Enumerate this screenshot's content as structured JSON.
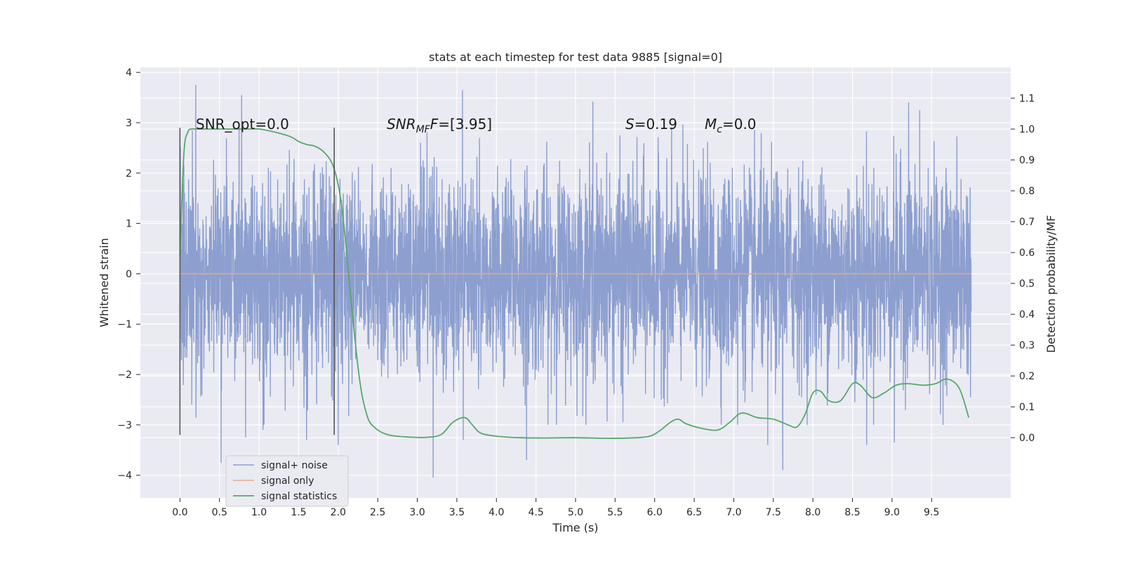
{
  "chart_data": {
    "type": "line",
    "title": "stats at each timestep for test data 9885 [signal=0]",
    "xlabel": "Time (s)",
    "ylabel_left": "Whitened strain",
    "ylabel_right": "Detection probability/MF",
    "xlim": [
      -0.5,
      10.5
    ],
    "ylim_left": [
      -4.45,
      4.1
    ],
    "ylim_right": [
      -0.195,
      1.2
    ],
    "x_ticks": [
      0.0,
      0.5,
      1.0,
      1.5,
      2.0,
      2.5,
      3.0,
      3.5,
      4.0,
      4.5,
      5.0,
      5.5,
      6.0,
      6.5,
      7.0,
      7.5,
      8.0,
      8.5,
      9.0,
      9.5
    ],
    "x_tick_labels": [
      "0.0",
      "0.5",
      "1.0",
      "1.5",
      "2.0",
      "2.5",
      "3.0",
      "3.5",
      "4.0",
      "4.5",
      "5.0",
      "5.5",
      "6.0",
      "6.5",
      "7.0",
      "7.5",
      "8.0",
      "8.5",
      "9.0",
      "9.5"
    ],
    "y_left_ticks": [
      -4,
      -3,
      -2,
      -1,
      0,
      1,
      2,
      3,
      4
    ],
    "y_left_tick_labels": [
      "−4",
      "−3",
      "−2",
      "−1",
      "0",
      "1",
      "2",
      "3",
      "4"
    ],
    "y_right_ticks": [
      0.0,
      0.1,
      0.2,
      0.3,
      0.4,
      0.5,
      0.6,
      0.7,
      0.8,
      0.9,
      1.0,
      1.1
    ],
    "y_right_tick_labels": [
      "0.0",
      "0.1",
      "0.2",
      "0.3",
      "0.4",
      "0.5",
      "0.6",
      "0.7",
      "0.8",
      "0.9",
      "1.0",
      "1.1"
    ],
    "grid": true,
    "legend_position": "lower-left",
    "annotations": {
      "snr_opt": "SNR_opt=0.0",
      "snr_mf_main": "SNR",
      "snr_mf_sub": "MF",
      "snr_mf_value": "=[3.95]",
      "s_main": "S",
      "s_value": "=0.19",
      "mc_main": "M",
      "mc_sub": "c",
      "mc_value": "=0.0"
    },
    "vertical_markers": [
      {
        "x": 0.0,
        "ymin": -3.2,
        "ymax": 2.9
      },
      {
        "x": 1.95,
        "ymin": -3.2,
        "ymax": 2.9
      }
    ],
    "series": [
      {
        "name": "signal+ noise",
        "axis": "left",
        "color": "#8c9fcf",
        "x_range": [
          0.0,
          10.0
        ],
        "samples": 4000,
        "std": 1.0,
        "peaks": [
          {
            "x": 0.2,
            "y": 3.25
          },
          {
            "x": 0.2,
            "y": -2.3
          },
          {
            "x": 0.2,
            "y": 3.75
          },
          {
            "x": 0.15,
            "y": -2.6
          },
          {
            "x": 0.52,
            "y": -3.75
          },
          {
            "x": 0.78,
            "y": 3.55
          },
          {
            "x": 0.83,
            "y": -3.25
          },
          {
            "x": 1.05,
            "y": -3.1
          },
          {
            "x": 1.6,
            "y": -3.3
          },
          {
            "x": 2.0,
            "y": -3.4
          },
          {
            "x": 3.2,
            "y": -4.05
          },
          {
            "x": 3.57,
            "y": 3.65
          },
          {
            "x": 3.58,
            "y": -3.3
          },
          {
            "x": 4.38,
            "y": -3.7
          },
          {
            "x": 5.22,
            "y": 3.42
          },
          {
            "x": 5.6,
            "y": -2.95
          },
          {
            "x": 7.05,
            "y": -3.0
          },
          {
            "x": 7.43,
            "y": -3.4
          },
          {
            "x": 7.62,
            "y": -3.9
          },
          {
            "x": 8.68,
            "y": -3.4
          },
          {
            "x": 9.03,
            "y": -3.35
          },
          {
            "x": 9.21,
            "y": 3.4
          },
          {
            "x": 9.35,
            "y": 3.25
          }
        ]
      },
      {
        "name": "signal only",
        "axis": "left",
        "color": "#e5a98a",
        "x": [
          0.0,
          10.0
        ],
        "y": [
          0.0,
          0.0
        ]
      },
      {
        "name": "signal statistics",
        "axis": "right",
        "color": "#55a868",
        "x": [
          0.0,
          0.05,
          0.1,
          0.15,
          0.2,
          0.3,
          0.5,
          0.8,
          1.0,
          1.2,
          1.4,
          1.5,
          1.6,
          1.7,
          1.8,
          1.9,
          1.95,
          2.0,
          2.05,
          2.1,
          2.15,
          2.2,
          2.25,
          2.3,
          2.35,
          2.4,
          2.5,
          2.6,
          2.7,
          2.9,
          3.1,
          3.3,
          3.45,
          3.6,
          3.7,
          3.8,
          4.0,
          4.3,
          4.6,
          5.0,
          5.5,
          5.9,
          6.05,
          6.2,
          6.3,
          6.4,
          6.6,
          6.8,
          6.95,
          7.1,
          7.3,
          7.5,
          7.7,
          7.8,
          7.9,
          8.0,
          8.1,
          8.2,
          8.35,
          8.5,
          8.6,
          8.75,
          8.9,
          9.05,
          9.2,
          9.4,
          9.55,
          9.7,
          9.85,
          9.97
        ],
        "y": [
          0.59,
          0.92,
          0.99,
          1.0,
          1.0,
          1.0,
          1.0,
          1.0,
          1.0,
          0.99,
          0.975,
          0.96,
          0.95,
          0.945,
          0.93,
          0.9,
          0.87,
          0.82,
          0.74,
          0.62,
          0.48,
          0.35,
          0.23,
          0.14,
          0.085,
          0.05,
          0.025,
          0.012,
          0.006,
          0.002,
          0.001,
          0.01,
          0.05,
          0.065,
          0.04,
          0.015,
          0.005,
          0.0,
          -0.001,
          0.0,
          -0.002,
          0.003,
          0.02,
          0.05,
          0.06,
          0.045,
          0.03,
          0.025,
          0.05,
          0.08,
          0.065,
          0.06,
          0.04,
          0.035,
          0.075,
          0.145,
          0.15,
          0.12,
          0.12,
          0.175,
          0.17,
          0.13,
          0.145,
          0.17,
          0.175,
          0.17,
          0.175,
          0.19,
          0.16,
          0.065
        ]
      }
    ]
  }
}
